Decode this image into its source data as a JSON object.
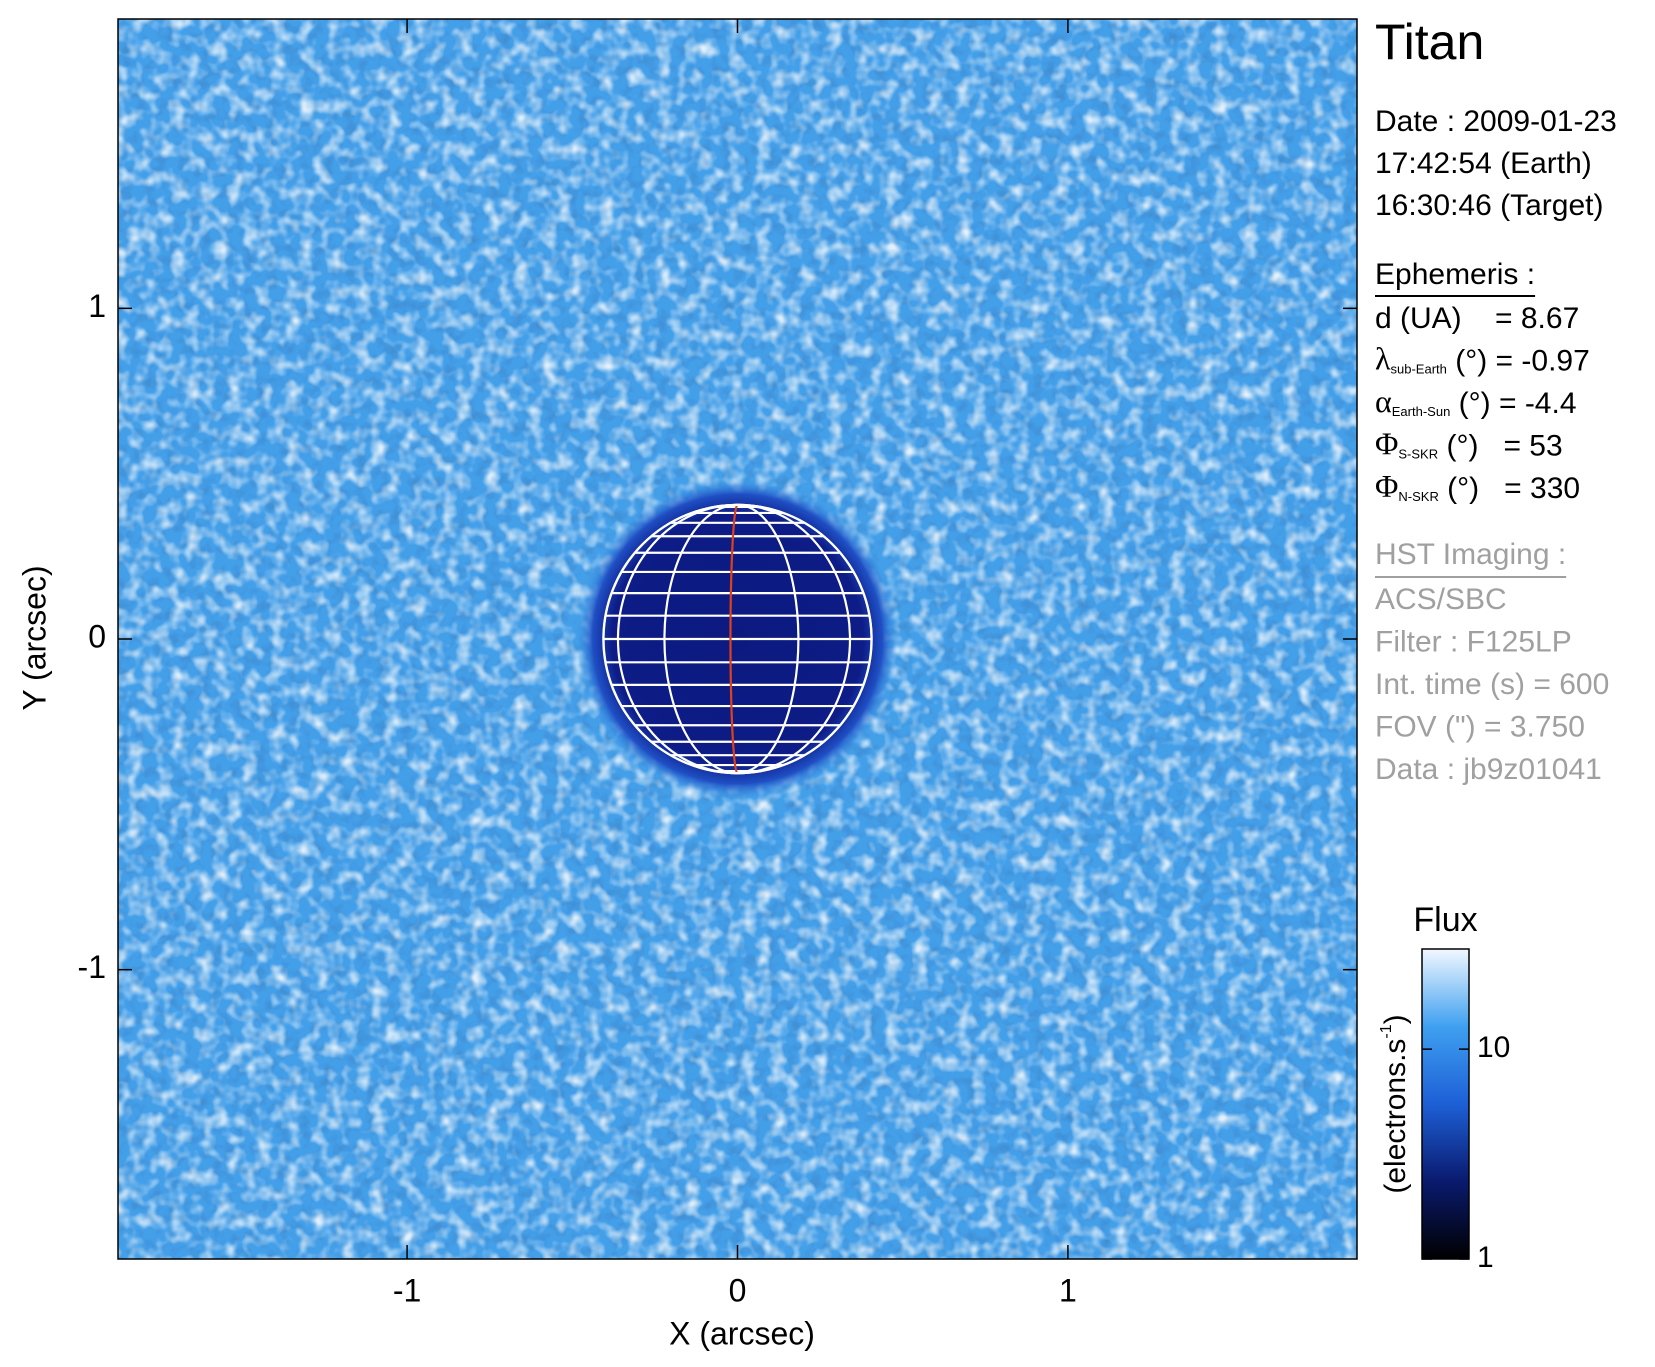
{
  "chart_data": {
    "type": "image",
    "x_label": "X (arcsec)",
    "y_label": "Y (arcsec)",
    "xlim": [
      -1.875,
      1.875
    ],
    "ylim": [
      -1.875,
      1.875
    ],
    "xticks": [
      -1,
      0,
      1
    ],
    "yticks": [
      -1,
      0,
      1
    ],
    "colorbar": {
      "title": "Flux",
      "label": "(electrons.s",
      "label_sup": "-1",
      "label_end": ")",
      "lim": [
        1,
        30
      ],
      "ticks": [
        1,
        10
      ],
      "log": true,
      "colormap": [
        "#000000",
        "#0a1a6e",
        "#1d5fd6",
        "#3fa0f0",
        "#f2f8ff"
      ]
    },
    "info": {
      "title": "Titan",
      "date": [
        "Date : 2009-01-23",
        "17:42:54 (Earth)",
        "16:30:46 (Target)"
      ],
      "ephemeris_title": "Ephemeris :",
      "ephemeris": [
        {
          "text": "d (UA)    = 8.67"
        },
        {
          "symbol": "λ",
          "sub": "sub-Earth",
          "text": " (°) = -0.97"
        },
        {
          "symbol": "α",
          "sub": "Earth-Sun",
          "text": " (°) = -4.4"
        },
        {
          "symbol": "Φ",
          "sub": "S-SKR",
          "text": " (°)   = 53"
        },
        {
          "symbol": "Φ",
          "sub": "N-SKR",
          "text": " (°)   = 330"
        }
      ],
      "imaging_title": "HST Imaging :",
      "imaging": [
        "ACS/SBC",
        "Filter : F125LP",
        "Int. time (s) = 600",
        "FOV (\") = 3.750",
        "Data : jb9z01041"
      ]
    }
  }
}
